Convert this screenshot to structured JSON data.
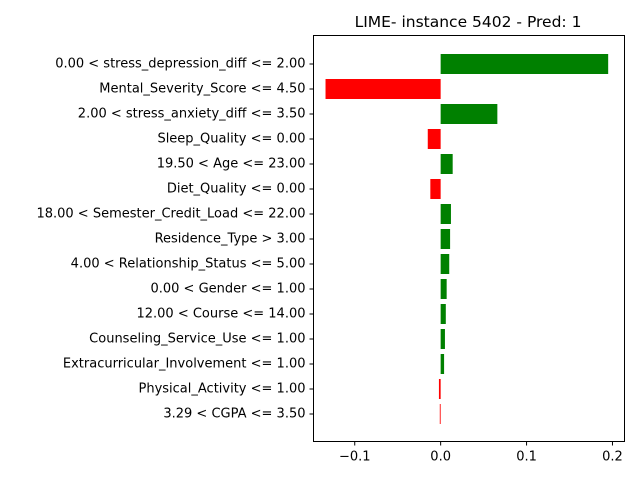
{
  "chart_data": {
    "type": "bar",
    "orientation": "horizontal",
    "title": "LIME- instance 5402 - Pred: 1",
    "xlabel": "",
    "ylabel": "",
    "xlim": [
      -0.148,
      0.214
    ],
    "xticks": [
      -0.1,
      0.0,
      0.1,
      0.2
    ],
    "xtick_labels": [
      "−0.1",
      "0.0",
      "0.1",
      "0.2"
    ],
    "grid": false,
    "colors": {
      "positive": "#008000",
      "negative": "#ff0000"
    },
    "categories": [
      "0.00 < stress_depression_diff <= 2.00",
      "Mental_Severity_Score <= 4.50",
      "2.00 < stress_anxiety_diff <= 3.50",
      "Sleep_Quality <= 0.00",
      "19.50 < Age <= 23.00",
      "Diet_Quality <= 0.00",
      "18.00 < Semester_Credit_Load <= 22.00",
      "Residence_Type > 3.00",
      "4.00 < Relationship_Status <= 5.00",
      "0.00 < Gender <= 1.00",
      "12.00 < Course <= 14.00",
      "Counseling_Service_Use <= 1.00",
      "Extracurricular_Involvement <= 1.00",
      "Physical_Activity <= 1.00",
      "3.29 < CGPA <= 3.50"
    ],
    "values": [
      0.195,
      -0.134,
      0.066,
      -0.015,
      0.014,
      -0.012,
      0.012,
      0.011,
      0.01,
      0.007,
      0.006,
      0.005,
      0.004,
      -0.002,
      -0.001
    ]
  }
}
